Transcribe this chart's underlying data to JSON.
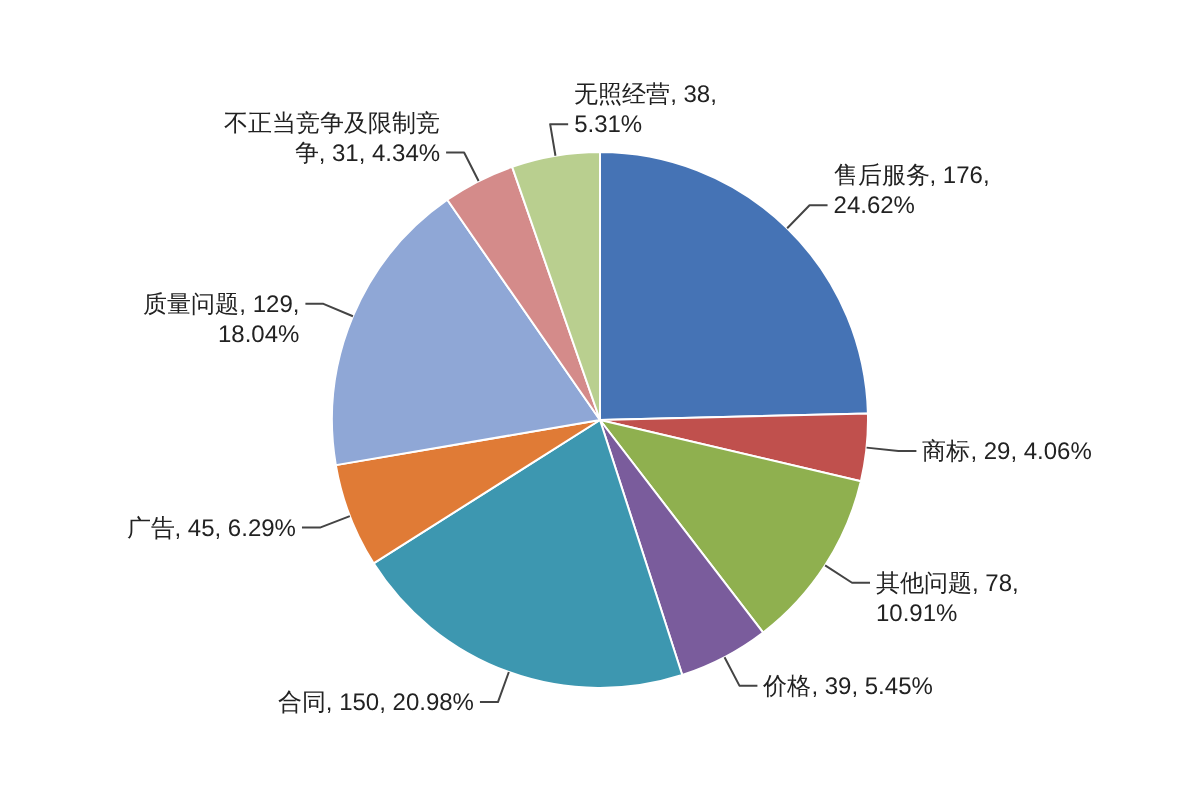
{
  "chart_data": {
    "type": "pie",
    "categories": [
      "售后服务",
      "商标",
      "其他问题",
      "价格",
      "合同",
      "广告",
      "质量问题",
      "不正当竞争及限制竞争",
      "无照经营"
    ],
    "values": [
      176,
      29,
      78,
      39,
      150,
      45,
      129,
      31,
      38
    ],
    "value_labels": [
      "176, 24.62%",
      "29, 4.06%",
      "78, 10.91%",
      "39, 5.45%",
      "150, 20.98%",
      "45, 6.29%",
      "129, 18.04%",
      "31, 4.34%",
      "38, 5.31%"
    ],
    "colors": [
      "#4573b5",
      "#c0504d",
      "#8fb04f",
      "#7a5c9c",
      "#3d97b0",
      "#e07b36",
      "#8fa7d6",
      "#d48b8a",
      "#b9cf8f"
    ]
  }
}
